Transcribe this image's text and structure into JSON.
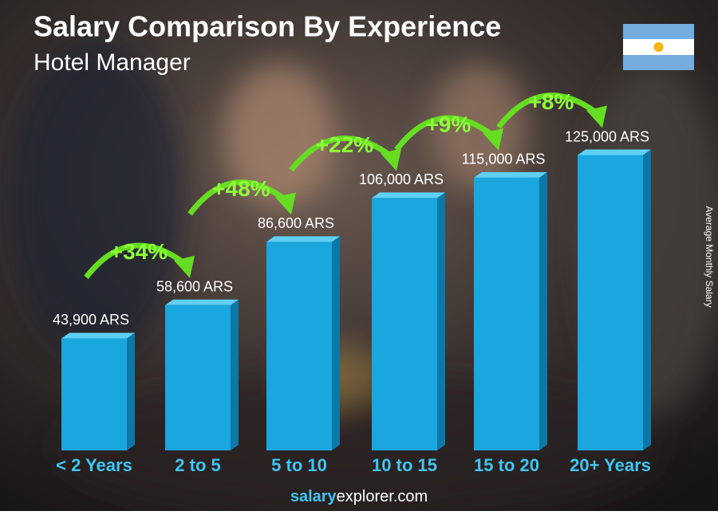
{
  "chart_data": {
    "type": "bar",
    "title": "Salary Comparison By Experience",
    "subtitle": "Hotel Manager",
    "y_axis_label": "Average Monthly Salary",
    "categories": [
      "< 2 Years",
      "2 to 5",
      "5 to 10",
      "10 to 15",
      "15 to 20",
      "20+ Years"
    ],
    "values": [
      43900,
      58600,
      86600,
      106000,
      115000,
      125000
    ],
    "value_labels": [
      "43,900 ARS",
      "58,600 ARS",
      "86,600 ARS",
      "106,000 ARS",
      "115,000 ARS",
      "125,000 ARS"
    ],
    "changes": [
      "+34%",
      "+48%",
      "+22%",
      "+9%",
      "+8%"
    ],
    "color": "#1aa6de",
    "footer": {
      "bold": "salary",
      "rest": "explorer.com"
    }
  }
}
